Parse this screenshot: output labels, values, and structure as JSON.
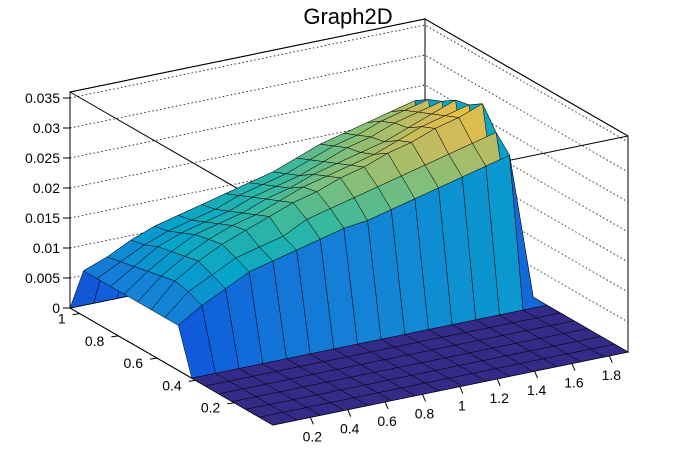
{
  "chart_data": {
    "type": "surface",
    "title": "Graph2D",
    "xlabel": "",
    "ylabel": "",
    "zlabel": "",
    "palette": [
      "#352a87",
      "#0f5cdd",
      "#1481d6",
      "#06a4ca",
      "#2eb7a4",
      "#87bf77",
      "#d1bb59",
      "#fec832",
      "#f9fb0e"
    ],
    "x_range": [
      0,
      1.9
    ],
    "y_range": [
      0,
      1.05
    ],
    "z_range": [
      0,
      0.036
    ],
    "x_ticks": [
      "0.2",
      "0.4",
      "0.6",
      "0.8",
      "1",
      "1.2",
      "1.4",
      "1.6",
      "1.8"
    ],
    "y_ticks": [
      "0.2",
      "0.4",
      "0.6",
      "0.8",
      "1"
    ],
    "z_ticks": [
      "0",
      "0.005",
      "0.01",
      "0.015",
      "0.02",
      "0.025",
      "0.03",
      "0.035"
    ],
    "grid": true,
    "surface_z": [
      [
        0.0,
        0.0,
        0.0,
        0.0,
        0.0,
        0.0,
        0.0,
        0.0,
        0.0,
        0.0,
        0.0,
        0.0,
        0.0,
        0.0,
        0.0,
        0.0
      ],
      [
        0.0,
        0.0,
        0.0,
        0.0,
        0.0,
        0.0,
        0.0,
        0.0,
        0.0,
        0.0,
        0.0,
        0.0,
        0.0,
        0.0,
        0.0,
        0.0
      ],
      [
        0.0,
        0.0,
        0.0,
        0.0,
        0.0,
        0.0,
        0.0,
        0.0,
        0.0,
        0.0,
        0.0,
        0.0,
        0.0,
        0.0,
        0.0,
        0.0
      ],
      [
        0.0,
        0.0,
        0.0,
        0.0,
        0.0,
        0.0,
        0.0,
        0.0,
        0.0,
        0.0,
        0.0,
        0.0,
        0.0,
        0.0,
        0.0,
        0.0
      ],
      [
        0.0,
        0.0,
        0.0,
        0.0,
        0.0,
        0.0,
        0.0,
        0.0,
        0.0,
        0.0,
        0.0,
        0.0,
        0.0,
        0.0,
        0.0,
        0.0
      ],
      [
        0.0,
        0.0,
        0.0,
        0.0,
        0.0,
        0.0,
        0.0,
        0.0,
        0.0,
        0.0,
        0.0,
        0.0,
        0.0,
        0.0,
        0.0,
        0.0
      ],
      [
        0.0,
        0.0,
        0.0,
        0.0,
        0.0,
        0.0,
        0.0,
        0.0,
        0.0,
        0.0,
        0.0,
        0.0,
        0.0,
        0.0,
        0.0,
        0.0
      ],
      [
        0.0075,
        0.01,
        0.012,
        0.014,
        0.015,
        0.016,
        0.017,
        0.018,
        0.0185,
        0.0195,
        0.0205,
        0.0215,
        0.0225,
        0.0235,
        0.0245,
        0.0
      ],
      [
        0.0075,
        0.011,
        0.013,
        0.015,
        0.016,
        0.017,
        0.019,
        0.02,
        0.021,
        0.022,
        0.023,
        0.024,
        0.025,
        0.026,
        0.027,
        0.0
      ],
      [
        0.0075,
        0.0115,
        0.014,
        0.016,
        0.0175,
        0.019,
        0.0205,
        0.0215,
        0.023,
        0.024,
        0.0255,
        0.0265,
        0.028,
        0.029,
        0.0305,
        0.0
      ],
      [
        0.0075,
        0.011,
        0.0135,
        0.0155,
        0.017,
        0.018,
        0.0195,
        0.021,
        0.022,
        0.023,
        0.024,
        0.0255,
        0.027,
        0.028,
        0.029,
        0.0
      ],
      [
        0.0075,
        0.0105,
        0.013,
        0.015,
        0.016,
        0.017,
        0.0185,
        0.0195,
        0.021,
        0.022,
        0.023,
        0.024,
        0.0255,
        0.027,
        0.0285,
        0.0
      ],
      [
        0.0075,
        0.01,
        0.0125,
        0.014,
        0.015,
        0.016,
        0.0175,
        0.0185,
        0.0195,
        0.021,
        0.0225,
        0.0235,
        0.025,
        0.026,
        0.027,
        0.0
      ],
      [
        0.0075,
        0.0095,
        0.0115,
        0.013,
        0.014,
        0.015,
        0.0165,
        0.0175,
        0.0185,
        0.02,
        0.0215,
        0.0225,
        0.024,
        0.025,
        0.026,
        0.0
      ],
      [
        0.0075,
        0.009,
        0.011,
        0.0125,
        0.0135,
        0.0145,
        0.0155,
        0.0165,
        0.0175,
        0.019,
        0.0205,
        0.0215,
        0.0225,
        0.0235,
        0.0245,
        0.0
      ],
      [
        0.0,
        0.0,
        0.0,
        0.0,
        0.0,
        0.0,
        0.0,
        0.0,
        0.0,
        0.0,
        0.0,
        0.0,
        0.0,
        0.0,
        0.0,
        0.0
      ]
    ]
  }
}
